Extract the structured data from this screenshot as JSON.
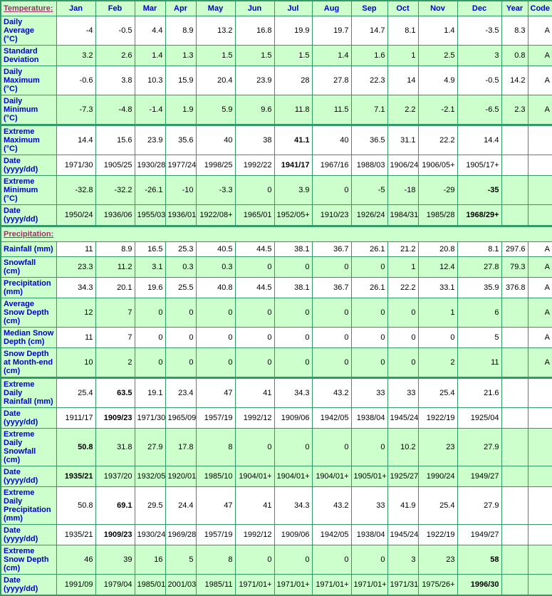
{
  "colors": {
    "cell_shade_green": "#CCFFCC",
    "cell_white": "#FFFFFF",
    "grid_border_green": "#339966",
    "row_label_blue": "#0000CC",
    "section_title_plum": "#993366",
    "data_text_black": "#000000"
  },
  "chart_data": {
    "type": "table",
    "columns": [
      "Jan",
      "Feb",
      "Mar",
      "Apr",
      "May",
      "Jun",
      "Jul",
      "Aug",
      "Sep",
      "Oct",
      "Nov",
      "Dec",
      "Year",
      "Code"
    ],
    "sections": [
      {
        "name": "temperature-normals-table",
        "title": "Temperature:",
        "title_is_link": true,
        "show_column_headers": true,
        "rows": [
          {
            "label": "Daily Average\n(°C)",
            "shade": false,
            "bold": [],
            "values": [
              "-4",
              "-0.5",
              "4.4",
              "8.9",
              "13.2",
              "16.8",
              "19.9",
              "19.7",
              "14.7",
              "8.1",
              "1.4",
              "-3.5",
              "8.3",
              "A"
            ]
          },
          {
            "label": "Standard\nDeviation",
            "shade": true,
            "bold": [],
            "values": [
              "3.2",
              "2.6",
              "1.4",
              "1.3",
              "1.5",
              "1.5",
              "1.5",
              "1.4",
              "1.6",
              "1",
              "2.5",
              "3",
              "0.8",
              "A"
            ]
          },
          {
            "label": "Daily\nMaximum\n(°C)",
            "shade": false,
            "bold": [],
            "values": [
              "-0.6",
              "3.8",
              "10.3",
              "15.9",
              "20.4",
              "23.9",
              "28",
              "27.8",
              "22.3",
              "14",
              "4.9",
              "-0.5",
              "14.2",
              "A"
            ]
          },
          {
            "label": "Daily\nMinimum\n(°C)",
            "shade": true,
            "bold": [],
            "values": [
              "-7.3",
              "-4.8",
              "-1.4",
              "1.9",
              "5.9",
              "9.6",
              "11.8",
              "11.5",
              "7.1",
              "2.2",
              "-2.1",
              "-6.5",
              "2.3",
              "A"
            ]
          }
        ]
      },
      {
        "name": "temperature-extremes-table",
        "rows": [
          {
            "label": "Extreme\nMaximum\n(°C)",
            "shade": false,
            "bold": [
              6
            ],
            "values": [
              "14.4",
              "15.6",
              "23.9",
              "35.6",
              "40",
              "38",
              "41.1",
              "40",
              "36.5",
              "31.1",
              "22.2",
              "14.4",
              "",
              ""
            ]
          },
          {
            "label": "Date\n(yyyy/dd)",
            "shade": false,
            "bold": [
              6
            ],
            "values": [
              "1971/30",
              "1905/25",
              "1930/28",
              "1977/24",
              "1998/25",
              "1992/22",
              "1941/17",
              "1967/16",
              "1988/03",
              "1906/24",
              "1906/05+",
              "1905/17+",
              "",
              ""
            ]
          },
          {
            "label": "Extreme\nMinimum\n(°C)",
            "shade": true,
            "bold": [
              11
            ],
            "values": [
              "-32.8",
              "-32.2",
              "-26.1",
              "-10",
              "-3.3",
              "0",
              "3.9",
              "0",
              "-5",
              "-18",
              "-29",
              "-35",
              "",
              ""
            ]
          },
          {
            "label": "Date\n(yyyy/dd)",
            "shade": true,
            "bold": [
              11
            ],
            "values": [
              "1950/24",
              "1936/06",
              "1955/03",
              "1936/01",
              "1922/08+",
              "1965/01",
              "1952/05+",
              "1910/23",
              "1926/24",
              "1984/31",
              "1985/28",
              "1968/29+",
              "",
              ""
            ]
          }
        ]
      },
      {
        "name": "precipitation-normals-table",
        "title": "Precipitation:",
        "title_is_link": true,
        "show_column_headers": false,
        "rows": [
          {
            "label": "Rainfall (mm)",
            "shade": false,
            "bold": [],
            "oneline": true,
            "values": [
              "11",
              "8.9",
              "16.5",
              "25.3",
              "40.5",
              "44.5",
              "38.1",
              "36.7",
              "26.1",
              "21.2",
              "20.8",
              "8.1",
              "297.6",
              "A"
            ]
          },
          {
            "label": "Snowfall\n(cm)",
            "shade": true,
            "bold": [],
            "values": [
              "23.3",
              "11.2",
              "3.1",
              "0.3",
              "0.3",
              "0",
              "0",
              "0",
              "0",
              "1",
              "12.4",
              "27.8",
              "79.3",
              "A"
            ]
          },
          {
            "label": "Precipitation\n(mm)",
            "shade": false,
            "bold": [],
            "values": [
              "34.3",
              "20.1",
              "19.6",
              "25.5",
              "40.8",
              "44.5",
              "38.1",
              "36.7",
              "26.1",
              "22.2",
              "33.1",
              "35.9",
              "376.8",
              "A"
            ]
          },
          {
            "label": "Average\nSnow Depth\n(cm)",
            "shade": true,
            "bold": [],
            "values": [
              "12",
              "7",
              "0",
              "0",
              "0",
              "0",
              "0",
              "0",
              "0",
              "0",
              "1",
              "6",
              "",
              "A"
            ]
          },
          {
            "label": "Median Snow\nDepth (cm)",
            "shade": false,
            "bold": [],
            "values": [
              "11",
              "7",
              "0",
              "0",
              "0",
              "0",
              "0",
              "0",
              "0",
              "0",
              "0",
              "5",
              "",
              "A"
            ]
          },
          {
            "label": "Snow Depth\nat Month-end\n(cm)",
            "shade": true,
            "bold": [],
            "values": [
              "10",
              "2",
              "0",
              "0",
              "0",
              "0",
              "0",
              "0",
              "0",
              "0",
              "2",
              "11",
              "",
              "A"
            ]
          }
        ]
      },
      {
        "name": "precipitation-extremes-table",
        "rows": [
          {
            "label": "Extreme Daily\nRainfall (mm)",
            "shade": false,
            "bold": [
              1
            ],
            "values": [
              "25.4",
              "63.5",
              "19.1",
              "23.4",
              "47",
              "41",
              "34.3",
              "43.2",
              "33",
              "33",
              "25.4",
              "21.6",
              "",
              ""
            ]
          },
          {
            "label": "Date\n(yyyy/dd)",
            "shade": false,
            "bold": [
              1
            ],
            "values": [
              "1911/17",
              "1909/23",
              "1971/30",
              "1965/09",
              "1957/19",
              "1992/12",
              "1909/06",
              "1942/05",
              "1938/04",
              "1945/24",
              "1922/19",
              "1925/04",
              "",
              ""
            ]
          },
          {
            "label": "Extreme Daily\nSnowfall\n(cm)",
            "shade": true,
            "bold": [
              0
            ],
            "values": [
              "50.8",
              "31.8",
              "27.9",
              "17.8",
              "8",
              "0",
              "0",
              "0",
              "0",
              "10.2",
              "23",
              "27.9",
              "",
              ""
            ]
          },
          {
            "label": "Date\n(yyyy/dd)",
            "shade": true,
            "bold": [
              0
            ],
            "values": [
              "1935/21",
              "1937/20",
              "1932/05",
              "1920/01",
              "1985/10",
              "1904/01+",
              "1904/01+",
              "1904/01+",
              "1905/01+",
              "1925/27",
              "1990/24",
              "1949/27",
              "",
              ""
            ]
          },
          {
            "label": "Extreme Daily\nPrecipitation\n(mm)",
            "shade": false,
            "bold": [
              1
            ],
            "values": [
              "50.8",
              "69.1",
              "29.5",
              "24.4",
              "47",
              "41",
              "34.3",
              "43.2",
              "33",
              "41.9",
              "25.4",
              "27.9",
              "",
              ""
            ]
          },
          {
            "label": "Date\n(yyyy/dd)",
            "shade": false,
            "bold": [
              1
            ],
            "values": [
              "1935/21",
              "1909/23",
              "1930/24",
              "1969/28",
              "1957/19",
              "1992/12",
              "1909/06",
              "1942/05",
              "1938/04",
              "1945/24",
              "1922/19",
              "1949/27",
              "",
              ""
            ]
          },
          {
            "label": "Extreme\nSnow Depth\n(cm)",
            "shade": true,
            "bold": [
              11
            ],
            "values": [
              "46",
              "39",
              "16",
              "5",
              "8",
              "0",
              "0",
              "0",
              "0",
              "3",
              "23",
              "58",
              "",
              ""
            ]
          },
          {
            "label": "Date\n(yyyy/dd)",
            "shade": true,
            "bold": [
              11
            ],
            "values": [
              "1991/09",
              "1979/04",
              "1985/01",
              "2001/03",
              "1985/11",
              "1971/01+",
              "1971/01+",
              "1971/01+",
              "1971/01+",
              "1971/31",
              "1975/26+",
              "1996/30",
              "",
              ""
            ]
          }
        ]
      }
    ]
  }
}
